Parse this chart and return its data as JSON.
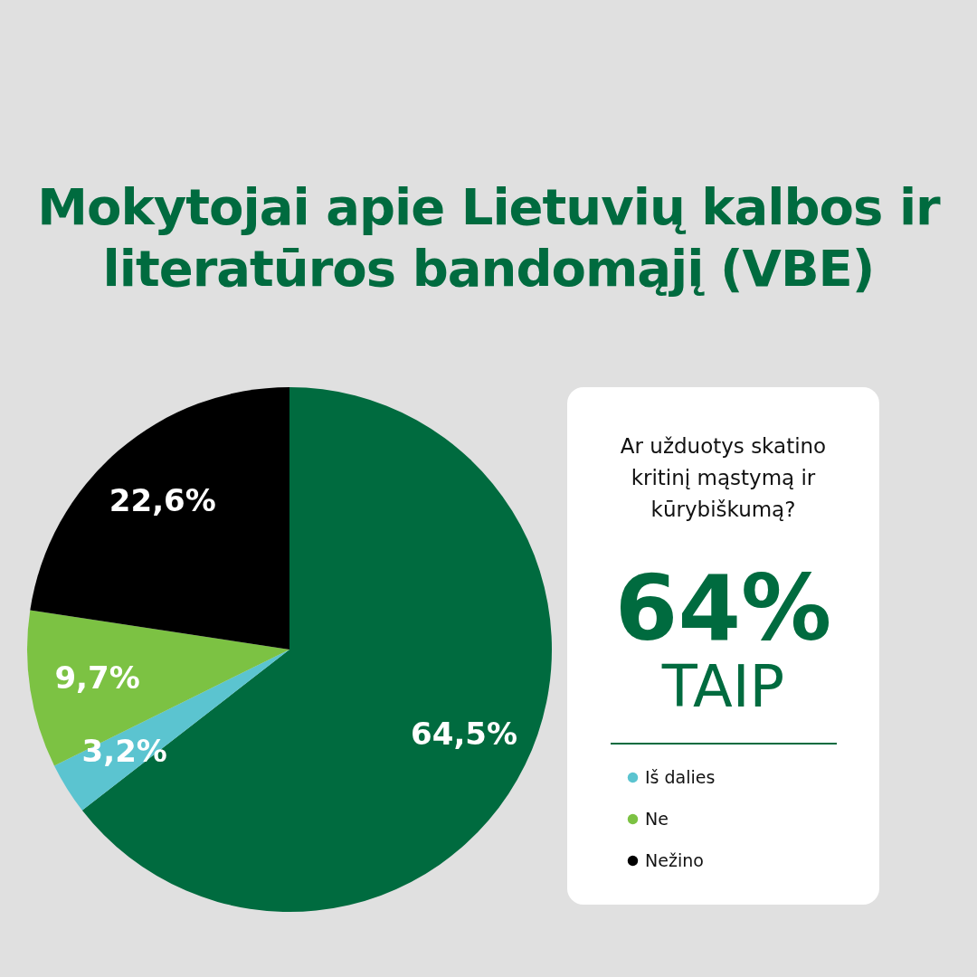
{
  "chart_data": {
    "type": "pie",
    "title": "Mokytojai apie Lietuvių kalbos ir literatūros bandomąjį (VBE)",
    "categories": [
      null,
      "Iš dalies",
      "Ne",
      "Nežino"
    ],
    "values": [
      64.5,
      3.2,
      9.7,
      22.6
    ],
    "colors": [
      "#006b3f",
      "#5bc4d0",
      "#7cc243",
      "#000000"
    ],
    "value_labels": [
      "64,5%",
      "3,2%",
      "9,7%",
      "22,6%"
    ],
    "legend": "right",
    "annotations": [
      "Ar užduotys skatino kritinį mąstymą ir kūrybiškumą?",
      "64%",
      "TAIP"
    ]
  }
}
